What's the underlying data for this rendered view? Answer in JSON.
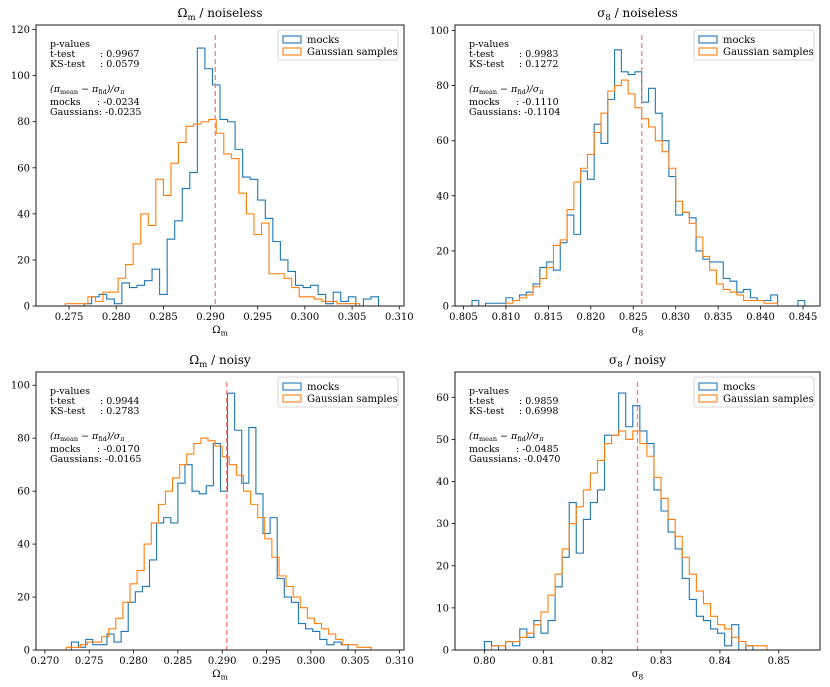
{
  "colors": {
    "mocks": "#1f77b4",
    "gaussian": "#ff7f0e",
    "fiducial": "#f08080"
  },
  "chart_data": [
    {
      "type": "histogram",
      "title_symbol": "Ω",
      "title_sub": "m",
      "title_rest": " / noiseless",
      "xlabel_symbol": "Ω",
      "xlabel_sub": "m",
      "xlim": [
        0.2715,
        0.3105
      ],
      "ylim": [
        0,
        122
      ],
      "xticks": [
        0.275,
        0.28,
        0.285,
        0.29,
        0.295,
        0.3,
        0.305,
        0.31
      ],
      "xtick_labels": [
        "0.275",
        "0.280",
        "0.285",
        "0.290",
        "0.295",
        "0.300",
        "0.305",
        "0.310"
      ],
      "yticks": [
        0,
        20,
        40,
        60,
        80,
        100,
        120
      ],
      "ytick_labels": [
        "0",
        "20",
        "40",
        "60",
        "80",
        "100",
        "120"
      ],
      "fiducial": 0.2905,
      "legend": [
        "mocks",
        "Gaussian samples"
      ],
      "annotation": {
        "pvalues": "p-values",
        "ttest_label": "t-test",
        "ttest_value": ": 0.9967",
        "ks_label": "KS-test",
        "ks_value": ": 0.0579",
        "ratio_label": "(π",
        "mocks_label": "mocks",
        "mocks_value": ": -0.0234",
        "gauss_label": "Gaussians:",
        "gauss_value": "-0.0235"
      },
      "series": [
        {
          "name": "mocks",
          "edges": [
            0.273,
            0.2758,
            0.2766,
            0.2774,
            0.2782,
            0.279,
            0.2798,
            0.2806,
            0.2814,
            0.2822,
            0.283,
            0.2838,
            0.2846,
            0.2854,
            0.2862,
            0.287,
            0.2878,
            0.2886,
            0.2894,
            0.2902,
            0.291,
            0.2918,
            0.2926,
            0.2934,
            0.2942,
            0.295,
            0.2958,
            0.2966,
            0.2974,
            0.2982,
            0.299,
            0.2998,
            0.3006,
            0.3014,
            0.3022,
            0.303,
            0.3038,
            0.3046,
            0.3054,
            0.3062,
            0.307,
            0.3078,
            0.3086
          ],
          "counts": [
            0,
            0,
            1,
            4,
            5,
            3,
            1,
            10,
            8,
            9,
            11,
            16,
            5,
            29,
            37,
            51,
            58,
            112,
            103,
            96,
            81,
            80,
            68,
            56,
            55,
            46,
            38,
            28,
            20,
            15,
            9,
            8,
            9,
            5,
            1,
            6,
            2,
            4,
            0,
            3,
            4,
            0
          ]
        },
        {
          "name": "Gaussian samples",
          "edges": [
            0.273,
            0.2738,
            0.2746,
            0.2754,
            0.2762,
            0.277,
            0.2778,
            0.2786,
            0.2794,
            0.2802,
            0.281,
            0.2818,
            0.2826,
            0.2834,
            0.2842,
            0.285,
            0.2858,
            0.2866,
            0.2874,
            0.2882,
            0.289,
            0.2898,
            0.2906,
            0.2914,
            0.2922,
            0.293,
            0.2938,
            0.2946,
            0.2954,
            0.2962,
            0.297,
            0.2978,
            0.2986,
            0.2994,
            0.3002,
            0.301,
            0.3018,
            0.3026,
            0.3034,
            0.3042,
            0.305,
            0.3058,
            0.3066
          ],
          "counts": [
            0,
            0,
            1,
            1,
            1,
            4,
            2,
            6,
            6,
            12,
            18,
            27,
            40,
            35,
            55,
            48,
            62,
            71,
            78,
            79,
            80,
            81,
            75,
            66,
            64,
            49,
            40,
            31,
            36,
            14,
            14,
            12,
            8,
            4,
            4,
            3,
            2,
            2,
            1,
            1,
            1,
            0
          ]
        }
      ]
    },
    {
      "type": "histogram",
      "title_symbol": "σ",
      "title_sub": "8",
      "title_rest": " / noiseless",
      "xlabel_symbol": "σ",
      "xlabel_sub": "8",
      "xlim": [
        0.804,
        0.847
      ],
      "ylim": [
        0,
        102
      ],
      "xticks": [
        0.805,
        0.81,
        0.815,
        0.82,
        0.825,
        0.83,
        0.835,
        0.84,
        0.845
      ],
      "xtick_labels": [
        "0.805",
        "0.810",
        "0.815",
        "0.820",
        "0.825",
        "0.830",
        "0.835",
        "0.840",
        "0.845"
      ],
      "yticks": [
        0,
        20,
        40,
        60,
        80,
        100
      ],
      "ytick_labels": [
        "0",
        "20",
        "40",
        "60",
        "80",
        "100"
      ],
      "fiducial": 0.826,
      "legend": [
        "mocks",
        "Gaussian samples"
      ],
      "annotation": {
        "pvalues": "p-values",
        "ttest_label": "t-test",
        "ttest_value": ": 0.9983",
        "ks_label": "KS-test",
        "ks_value": ": 0.1272",
        "ratio_label": "(π",
        "mocks_label": "mocks",
        "mocks_value": ": -0.1110",
        "gauss_label": "Gaussians:",
        "gauss_value": "-0.1104"
      },
      "series": [
        {
          "name": "mocks",
          "edges": [
            0.806,
            0.8068,
            0.8076,
            0.8084,
            0.8092,
            0.81,
            0.8108,
            0.8116,
            0.8124,
            0.8132,
            0.814,
            0.8148,
            0.8156,
            0.8164,
            0.8172,
            0.818,
            0.8188,
            0.8196,
            0.8204,
            0.8212,
            0.822,
            0.8228,
            0.8236,
            0.8244,
            0.8252,
            0.826,
            0.8268,
            0.8276,
            0.8284,
            0.8292,
            0.83,
            0.8308,
            0.8316,
            0.8324,
            0.8332,
            0.834,
            0.8348,
            0.8356,
            0.8364,
            0.8372,
            0.838,
            0.8388,
            0.8396,
            0.8404,
            0.8412,
            0.842,
            0.8428,
            0.8436,
            0.8444,
            0.8452
          ],
          "counts": [
            2,
            0,
            1,
            1,
            1,
            3,
            2,
            4,
            5,
            8,
            14,
            16,
            13,
            23,
            33,
            26,
            49,
            46,
            66,
            59,
            75,
            93,
            85,
            84,
            85,
            74,
            79,
            70,
            60,
            47,
            33,
            34,
            32,
            20,
            17,
            16,
            16,
            10,
            9,
            5,
            6,
            3,
            2,
            2,
            4,
            0,
            0,
            0,
            2
          ]
        },
        {
          "name": "Gaussian samples",
          "edges": [
            0.81,
            0.8108,
            0.8116,
            0.8124,
            0.8132,
            0.814,
            0.8148,
            0.8156,
            0.8164,
            0.8172,
            0.818,
            0.8188,
            0.8196,
            0.8204,
            0.8212,
            0.822,
            0.8228,
            0.8236,
            0.8244,
            0.8252,
            0.826,
            0.8268,
            0.8276,
            0.8284,
            0.8292,
            0.83,
            0.8308,
            0.8316,
            0.8324,
            0.8332,
            0.834,
            0.8348,
            0.8356,
            0.8364,
            0.8372,
            0.838,
            0.8388,
            0.8396,
            0.8404,
            0.8412,
            0.842
          ],
          "counts": [
            1,
            2,
            3,
            4,
            7,
            10,
            14,
            22,
            24,
            35,
            45,
            50,
            55,
            63,
            70,
            78,
            80,
            82,
            77,
            72,
            68,
            65,
            60,
            56,
            50,
            38,
            34,
            30,
            25,
            18,
            13,
            8,
            6,
            5,
            4,
            2,
            2,
            2,
            1,
            1
          ]
        }
      ]
    },
    {
      "type": "histogram",
      "title_symbol": "Ω",
      "title_sub": "m",
      "title_rest": " / noisy",
      "xlabel_symbol": "Ω",
      "xlabel_sub": "m",
      "xlim": [
        0.269,
        0.3105
      ],
      "ylim": [
        0,
        105
      ],
      "xticks": [
        0.27,
        0.275,
        0.28,
        0.285,
        0.29,
        0.295,
        0.3,
        0.305,
        0.31
      ],
      "xtick_labels": [
        "0.270",
        "0.275",
        "0.280",
        "0.285",
        "0.290",
        "0.295",
        "0.300",
        "0.305",
        "0.310"
      ],
      "yticks": [
        0,
        20,
        40,
        60,
        80,
        100
      ],
      "ytick_labels": [
        "0",
        "20",
        "40",
        "60",
        "80",
        "100"
      ],
      "fiducial": 0.2905,
      "legend": [
        "mocks",
        "Gaussian samples"
      ],
      "annotation": {
        "pvalues": "p-values",
        "ttest_label": "t-test",
        "ttest_value": ": 0.9944",
        "ks_label": "KS-test",
        "ks_value": ": 0.2783",
        "ratio_label": "(π",
        "mocks_label": "mocks",
        "mocks_value": ": -0.0170",
        "gauss_label": "Gaussians:",
        "gauss_value": "-0.0165"
      },
      "series": [
        {
          "name": "mocks",
          "edges": [
            0.273,
            0.2738,
            0.2746,
            0.2754,
            0.2762,
            0.277,
            0.2778,
            0.2786,
            0.2794,
            0.2802,
            0.281,
            0.2818,
            0.2826,
            0.2834,
            0.2842,
            0.285,
            0.2858,
            0.2866,
            0.2874,
            0.2882,
            0.289,
            0.2898,
            0.2906,
            0.2914,
            0.2922,
            0.293,
            0.2938,
            0.2946,
            0.2954,
            0.2962,
            0.297,
            0.2978,
            0.2986,
            0.2994,
            0.3002,
            0.301,
            0.3018,
            0.3026,
            0.3034,
            0.3042,
            0.305,
            0.3058,
            0.3066
          ],
          "counts": [
            3,
            1,
            4,
            2,
            2,
            6,
            3,
            7,
            18,
            22,
            24,
            34,
            48,
            50,
            48,
            63,
            70,
            60,
            59,
            62,
            78,
            60,
            97,
            83,
            63,
            84,
            59,
            44,
            50,
            27,
            20,
            18,
            10,
            8,
            7,
            4,
            2,
            3,
            2,
            0,
            0,
            0
          ]
        },
        {
          "name": "Gaussian samples",
          "edges": [
            0.27,
            0.2708,
            0.2716,
            0.2724,
            0.2732,
            0.274,
            0.2748,
            0.2756,
            0.2764,
            0.2772,
            0.278,
            0.2788,
            0.2796,
            0.2804,
            0.2812,
            0.282,
            0.2828,
            0.2836,
            0.2844,
            0.2852,
            0.286,
            0.2868,
            0.2876,
            0.2884,
            0.2892,
            0.29,
            0.2908,
            0.2916,
            0.2924,
            0.2932,
            0.294,
            0.2948,
            0.2956,
            0.2964,
            0.2972,
            0.298,
            0.2988,
            0.2996,
            0.3004,
            0.3012,
            0.302,
            0.3028,
            0.3036,
            0.3044,
            0.3052,
            0.306,
            0.3068,
            0.3076,
            0.3084,
            0.3092
          ],
          "counts": [
            0,
            0,
            0,
            1,
            1,
            2,
            3,
            3,
            5,
            8,
            12,
            18,
            25,
            30,
            40,
            48,
            55,
            60,
            65,
            70,
            74,
            78,
            80,
            79,
            77,
            73,
            70,
            66,
            60,
            55,
            50,
            42,
            35,
            28,
            24,
            20,
            16,
            12,
            10,
            8,
            6,
            4,
            2,
            2,
            1,
            1,
            0,
            0,
            0
          ]
        }
      ]
    },
    {
      "type": "histogram",
      "title_symbol": "σ",
      "title_sub": "8",
      "title_rest": " / noisy",
      "xlabel_symbol": "σ",
      "xlabel_sub": "8",
      "xlim": [
        0.795,
        0.857
      ],
      "ylim": [
        0,
        66
      ],
      "xticks": [
        0.8,
        0.81,
        0.82,
        0.83,
        0.84,
        0.85
      ],
      "xtick_labels": [
        "0.80",
        "0.81",
        "0.82",
        "0.83",
        "0.84",
        "0.85"
      ],
      "yticks": [
        0,
        10,
        20,
        30,
        40,
        50,
        60
      ],
      "ytick_labels": [
        "0",
        "10",
        "20",
        "30",
        "40",
        "50",
        "60"
      ],
      "fiducial": 0.826,
      "legend": [
        "mocks",
        "Gaussian samples"
      ],
      "annotation": {
        "pvalues": "p-values",
        "ttest_label": "t-test",
        "ttest_value": ": 0.9859",
        "ks_label": "KS-test",
        "ks_value": ": 0.6998",
        "ratio_label": "(π",
        "mocks_label": "mocks",
        "mocks_value": ": -0.0485",
        "gauss_label": "Gaussians:",
        "gauss_value": "-0.0470"
      },
      "series": [
        {
          "name": "mocks",
          "edges": [
            0.8,
            0.8012,
            0.8024,
            0.8036,
            0.8048,
            0.806,
            0.8072,
            0.8084,
            0.8096,
            0.8108,
            0.812,
            0.8132,
            0.8144,
            0.8156,
            0.8168,
            0.818,
            0.8192,
            0.8204,
            0.8216,
            0.8228,
            0.824,
            0.8252,
            0.8264,
            0.8276,
            0.8288,
            0.83,
            0.8312,
            0.8324,
            0.8336,
            0.8348,
            0.836,
            0.8372,
            0.8384,
            0.8396,
            0.8408,
            0.842,
            0.8432,
            0.8444,
            0.8456,
            0.8468,
            0.848,
            0.8492,
            0.8504,
            0.8516
          ],
          "counts": [
            2,
            1,
            0,
            2,
            1,
            5,
            3,
            7,
            4,
            7,
            15,
            22,
            35,
            23,
            31,
            35,
            38,
            51,
            51,
            61,
            53,
            58,
            52,
            49,
            38,
            33,
            28,
            24,
            17,
            12,
            8,
            7,
            5,
            4,
            1,
            6,
            0,
            1,
            0,
            0,
            0,
            0,
            0
          ]
        },
        {
          "name": "Gaussian samples",
          "edges": [
            0.8,
            0.8012,
            0.8024,
            0.8036,
            0.8048,
            0.806,
            0.8072,
            0.8084,
            0.8096,
            0.8108,
            0.812,
            0.8132,
            0.8144,
            0.8156,
            0.8168,
            0.818,
            0.8192,
            0.8204,
            0.8216,
            0.8228,
            0.824,
            0.8252,
            0.8264,
            0.8276,
            0.8288,
            0.83,
            0.8312,
            0.8324,
            0.8336,
            0.8348,
            0.836,
            0.8372,
            0.8384,
            0.8396,
            0.8408,
            0.842,
            0.8432,
            0.8444,
            0.8456,
            0.8468,
            0.848,
            0.8492,
            0.8504,
            0.8516,
            0.8528,
            0.854
          ],
          "counts": [
            0,
            1,
            1,
            2,
            2,
            3,
            4,
            6,
            9,
            13,
            18,
            24,
            30,
            34,
            38,
            42,
            45,
            49,
            51,
            52,
            50,
            52,
            49,
            46,
            41,
            36,
            31,
            27,
            22,
            18,
            14,
            11,
            8,
            6,
            5,
            3,
            2,
            1,
            1,
            1,
            0,
            0,
            0,
            0,
            0
          ]
        }
      ]
    }
  ]
}
